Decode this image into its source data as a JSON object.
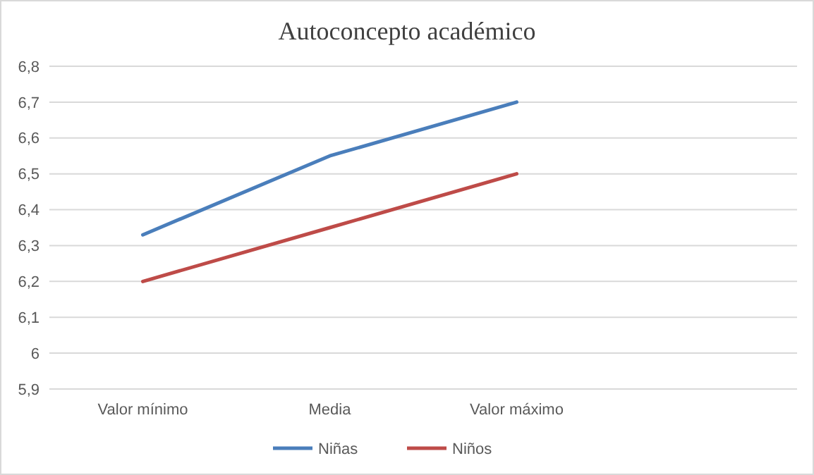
{
  "chart_data": {
    "type": "line",
    "title": "Autoconcepto académico",
    "categories": [
      "Valor mínimo",
      "Media",
      "Valor máximo",
      null
    ],
    "series": [
      {
        "name": "Niñas",
        "color": "#4a7ebb",
        "values": [
          6.33,
          6.55,
          6.7,
          null
        ]
      },
      {
        "name": "Niños",
        "color": "#be4b48",
        "values": [
          6.2,
          6.35,
          6.5,
          null
        ]
      }
    ],
    "ylim": [
      5.9,
      6.8
    ],
    "yticks": [
      {
        "value": 5.9,
        "label": "5,9"
      },
      6,
      {
        "value": 6.1,
        "label": "6,1"
      },
      {
        "value": 6.2,
        "label": "6,2"
      },
      {
        "value": 6.3,
        "label": "6,3"
      },
      {
        "value": 6.4,
        "label": "6,4"
      },
      {
        "value": 6.5,
        "label": "6,5"
      },
      {
        "value": 6.6,
        "label": "6,6"
      },
      {
        "value": 6.7,
        "label": "6,7"
      },
      {
        "value": 6.8,
        "label": "6,8"
      }
    ],
    "grid": "y",
    "legend": "bottom",
    "marker": "none",
    "line_style": "solid"
  }
}
